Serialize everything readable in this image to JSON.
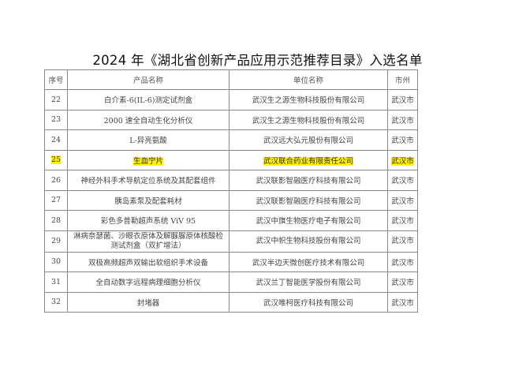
{
  "title": "2024 年《湖北省创新产品应用示范推荐目录》入选名单",
  "highlight_color": "#fff200",
  "table": {
    "headers": [
      "序号",
      "产品名称",
      "单位名称",
      "市州"
    ],
    "rows": [
      {
        "no": "22",
        "product": "白介素-6(IL-6)测定试剂盒",
        "company": "武汉生之源生物科技股份有限公司",
        "city": "武汉市"
      },
      {
        "no": "23",
        "product": "2000 速全自动生化分析仪",
        "company": "武汉生之源生物科技股份有限公司",
        "city": "武汉市"
      },
      {
        "no": "24",
        "product": "L-异亮氨酸",
        "company": "武汉远大弘元股份有限公司",
        "city": "武汉市"
      },
      {
        "no": "25",
        "product": "生血宁片",
        "company": "武汉联合药业有限责任公司",
        "city": "武汉市",
        "highlighted": true
      },
      {
        "no": "26",
        "product": "神经外科手术导航定位系统及其配套组件",
        "company": "武汉联影智融医疗科技有限公司",
        "city": "武汉市"
      },
      {
        "no": "27",
        "product": "胰岛素泵及配套耗材",
        "company": "武汉联影智融医疗科技有限公司",
        "city": "武汉市"
      },
      {
        "no": "28",
        "product": "彩色多普勒超声系统 ViV 95",
        "company": "武汉中旗生物医疗电子有限公司",
        "city": "武汉市"
      },
      {
        "no": "29",
        "product": "淋病奈瑟菌、沙眼衣原体及解脲脲原体核酸检测试剂盒（双扩增法）",
        "company": "武汉中帜生物科技股份有限公司",
        "city": "武汉市"
      },
      {
        "no": "30",
        "product": "双极高频超声双输出软组织手术设备",
        "company": "武汉半边天微创医疗技术有限公司",
        "city": "武汉市"
      },
      {
        "no": "31",
        "product": "全自动数字远程病理细胞分析仪",
        "company": "武汉兰丁智能医学股份有限公司",
        "city": "武汉市"
      },
      {
        "no": "32",
        "product": "封堵器",
        "company": "武汉唯柯医疗科技有限公司",
        "city": "武汉市"
      }
    ]
  }
}
